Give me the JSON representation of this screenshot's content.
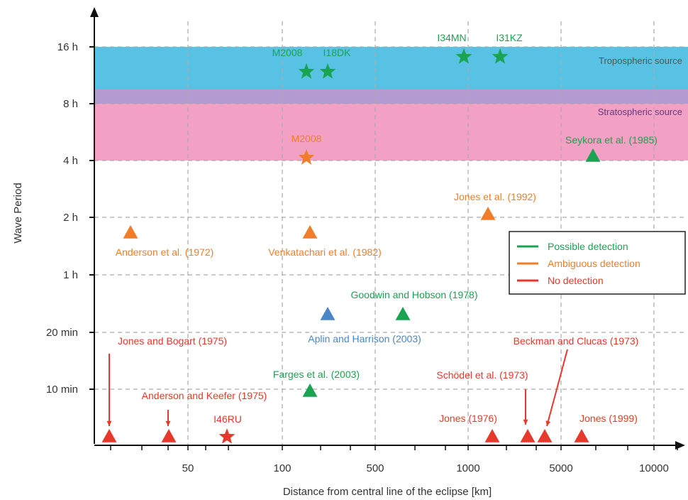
{
  "chart_data": {
    "type": "scatter",
    "title": "",
    "xlabel": "Distance from central line of the eclipse [km]",
    "ylabel": "Wave Period",
    "x_ticks": [
      "50",
      "100",
      "500",
      "1000",
      "5000",
      "10000"
    ],
    "y_ticks": [
      "10 min",
      "20 min",
      "1 h",
      "2 h",
      "4 h",
      "8 h",
      "16 h"
    ],
    "grid": true,
    "legend_position": "right",
    "colors": {
      "possible": "#1aa351",
      "ambiguous": "#f07d2a",
      "none": "#e8382b",
      "blue": "#4a86c8",
      "tropo_band": "#58c2e4",
      "strato_band": "#f2a0c4",
      "overlap_band": "#b39ad1"
    },
    "legend": [
      {
        "label": "Possible detection",
        "color": "#1aa351"
      },
      {
        "label": "Ambiguous detection",
        "color": "#f07d2a"
      },
      {
        "label": "No detection",
        "color": "#e8382b"
      }
    ],
    "bands": [
      {
        "label": "Tropospheric source",
        "from": 10,
        "to": 16
      },
      {
        "label": "Stratospheric source",
        "from": 4,
        "to": 9
      }
    ],
    "points": [
      {
        "label": "M2008",
        "marker": "star",
        "color": "#1aa351",
        "x": 4.65,
        "y": 12.4
      },
      {
        "label": "I18DK",
        "marker": "star",
        "color": "#1aa351",
        "x": 4.9,
        "y": 12.4
      },
      {
        "label": "I34MN",
        "marker": "star",
        "color": "#1aa351",
        "x": 5.98,
        "y": 14.2
      },
      {
        "label": "I31KZ",
        "marker": "star",
        "color": "#1aa351",
        "x": 6.18,
        "y": 14.2
      },
      {
        "label": "M2008",
        "marker": "star",
        "color": "#f07d2a",
        "x": 4.65,
        "y": 4.1
      },
      {
        "label": "Seykora et al. (1985)",
        "marker": "triangle",
        "color": "#1aa351",
        "x": 7.0,
        "y": 4.1
      },
      {
        "label": "Jones et al. (1992)",
        "marker": "triangle",
        "color": "#f07d2a",
        "x": 6.13,
        "y": 2.05
      },
      {
        "label": "Anderson et al. (1972)",
        "marker": "triangle",
        "color": "#f07d2a",
        "x": 2.2,
        "y": 1.75
      },
      {
        "label": "Venkatachari et al. (1982)",
        "marker": "triangle",
        "color": "#f07d2a",
        "x": 4.7,
        "y": 1.75
      },
      {
        "label": "Goodwin and Hobson (1978)",
        "marker": "triangle",
        "color": "#1aa351",
        "x": 5.6,
        "y": 0.42
      },
      {
        "label": "Aplin and Harrison (2003)",
        "marker": "triangle",
        "color": "#4a86c8",
        "x": 5.0,
        "y": 0.42
      },
      {
        "label": "Farges et al. (2003)",
        "marker": "triangle",
        "color": "#1aa351",
        "x": 4.75,
        "y": 0.16
      },
      {
        "label": "Jones and Bogart (1975)",
        "marker": "triangle",
        "color": "#e8382b",
        "x": 0.85,
        "y": 0.09
      },
      {
        "label": "Anderson and Keefer (1975)",
        "marker": "triangle",
        "color": "#e8382b",
        "x": 1.62,
        "y": 0.09
      },
      {
        "label": "I46RU",
        "marker": "star",
        "color": "#e8382b",
        "x": 2.6,
        "y": 0.09
      },
      {
        "label": "Jones (1976)",
        "marker": "triangle",
        "color": "#e8382b",
        "x": 6.4,
        "y": 0.09
      },
      {
        "label": "Schödel et al. (1973)",
        "marker": "triangle",
        "color": "#e8382b",
        "x": 6.75,
        "y": 0.09
      },
      {
        "label": "Beckman and Clucas (1973)",
        "marker": "triangle",
        "color": "#e8382b",
        "x": 6.95,
        "y": 0.09
      },
      {
        "label": "Jones (1999)",
        "marker": "triangle",
        "color": "#e8382b",
        "x": 7.55,
        "y": 0.09
      }
    ]
  }
}
